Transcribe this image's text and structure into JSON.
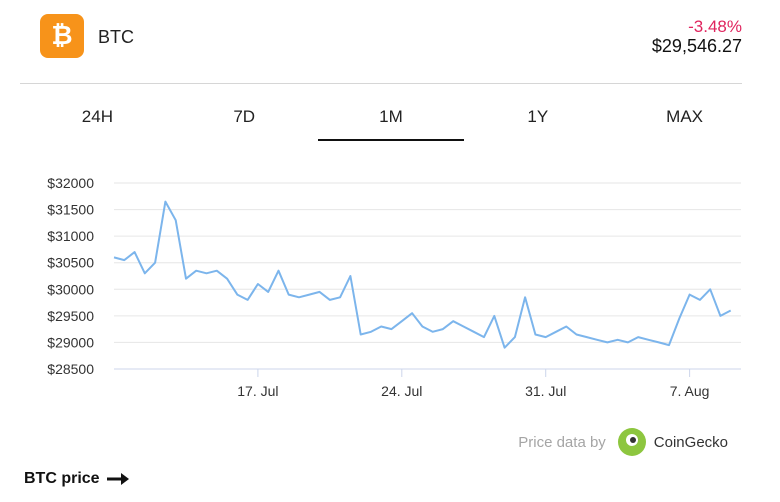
{
  "header": {
    "coin_icon": "bitcoin-icon",
    "coin_symbol_glyph": "₿",
    "coin_name": "BTC",
    "change": "-3.48%",
    "price": "$29,546.27",
    "change_color": "#e0245e",
    "brand_color": "#f7931a"
  },
  "tabs": [
    {
      "label": "24H",
      "active": false
    },
    {
      "label": "7D",
      "active": false
    },
    {
      "label": "1M",
      "active": true
    },
    {
      "label": "1Y",
      "active": false
    },
    {
      "label": "MAX",
      "active": false
    }
  ],
  "chart_data": {
    "type": "line",
    "ylim": [
      28500,
      32000
    ],
    "yticks": [
      "$32000",
      "$31500",
      "$31000",
      "$30500",
      "$30000",
      "$29500",
      "$29000",
      "$28500"
    ],
    "ytick_values": [
      32000,
      31500,
      31000,
      30500,
      30000,
      29500,
      29000,
      28500
    ],
    "xlim": [
      0,
      30.5
    ],
    "xticks": [
      {
        "label": "17. Jul",
        "x": 7
      },
      {
        "label": "24. Jul",
        "x": 14
      },
      {
        "label": "31. Jul",
        "x": 21
      },
      {
        "label": "7. Aug",
        "x": 28
      }
    ],
    "grid": true,
    "line_color": "#7cb5ec",
    "series": [
      {
        "x": [
          0,
          0.5,
          1,
          1.5,
          2,
          2.5,
          3,
          3.5,
          4,
          4.5,
          5,
          5.5,
          6,
          6.5,
          7,
          7.5,
          8,
          8.5,
          9,
          9.5,
          10,
          10.5,
          11,
          11.5,
          12,
          12.5,
          13,
          13.5,
          14,
          14.5,
          15,
          15.5,
          16,
          16.5,
          17,
          17.5,
          18,
          18.5,
          19,
          19.5,
          20,
          20.5,
          21,
          21.5,
          22,
          22.5,
          23,
          23.5,
          24,
          24.5,
          25,
          25.5,
          26,
          26.5,
          27,
          27.5,
          28,
          28.5,
          29,
          29.5,
          30
        ],
        "values": [
          30600,
          30550,
          30700,
          30300,
          30500,
          31650,
          31300,
          30200,
          30350,
          30300,
          30350,
          30200,
          29900,
          29800,
          30100,
          29950,
          30350,
          29900,
          29850,
          29900,
          29950,
          29800,
          29850,
          30250,
          29150,
          29200,
          29300,
          29250,
          29400,
          29550,
          29300,
          29200,
          29250,
          29400,
          29300,
          29200,
          29100,
          29500,
          28900,
          29100,
          29850,
          29150,
          29100,
          29200,
          29300,
          29150,
          29100,
          29050,
          29000,
          29050,
          29000,
          29100,
          29050,
          29000,
          28950,
          29450,
          29900,
          29800,
          30000,
          29500,
          29600
        ]
      }
    ]
  },
  "attribution": {
    "text": "Price data by",
    "provider": "CoinGecko",
    "icon": "coingecko-icon"
  },
  "footer": {
    "link_text": "BTC price",
    "icon": "arrow-right-icon"
  }
}
